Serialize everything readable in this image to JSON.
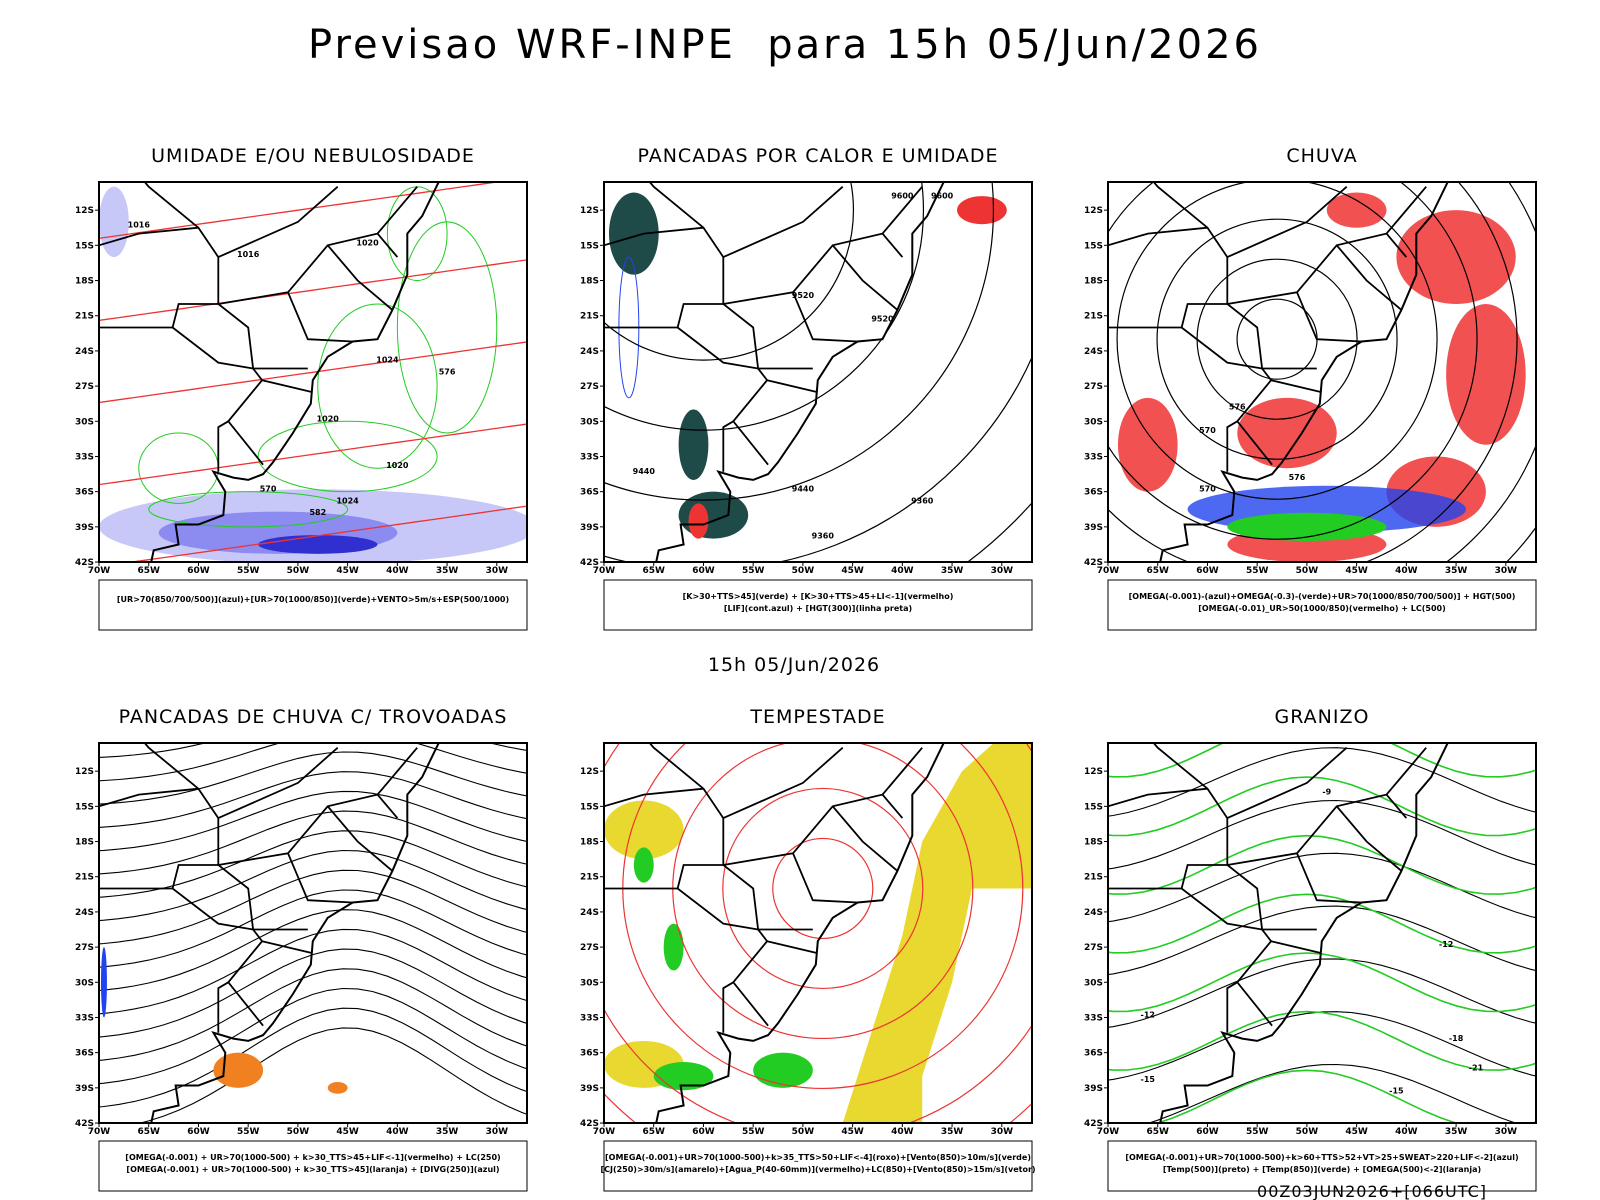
{
  "title": "Previsao WRF-INPE  para 15h 05/Jun/2026",
  "subtitle": "15h 05/Jun/2026",
  "footer": "00Z03JUN2026+[066UTC]",
  "lat_ticks": [
    "12S",
    "15S",
    "18S",
    "21S",
    "24S",
    "27S",
    "30S",
    "33S",
    "36S",
    "39S",
    "42S"
  ],
  "lon_ticks": [
    "70W",
    "65W",
    "60W",
    "55W",
    "50W",
    "45W",
    "40W",
    "35W",
    "30W"
  ],
  "panels": [
    {
      "title": "UMIDADE E/OU NEBULOSIDADE",
      "legend": [
        "[UR>70(850/700/500)](azul)+[UR>70(1000/850)](verde)+VENTO>5m/s+ESP(500/1000)"
      ],
      "contour_labels": [
        "1016",
        "1016",
        "1020",
        "1024",
        "1020",
        "1024",
        "1020",
        "576",
        "582",
        "570"
      ]
    },
    {
      "title": "PANCADAS POR CALOR E UMIDADE",
      "legend": [
        "[K>30+TTS>45](verde) + [K>30+TTS>45+LI<-1](vermelho)",
        "[LIF](cont.azul) + [HGT(300)](linha preta)"
      ],
      "contour_labels": [
        "9600",
        "9600",
        "9520",
        "9520",
        "9440",
        "9440",
        "9360",
        "9360"
      ]
    },
    {
      "title": "CHUVA",
      "legend": [
        "[OMEGA(-0.001)-(azul)+OMEGA(-0.3)-(verde)+UR>70(1000/850/700/500)] + HGT(500)",
        "[OMEGA(-0.01)_UR>50(1000/850)(vermelho) + LC(500)"
      ],
      "contour_labels": [
        "576",
        "570",
        "576",
        "570"
      ]
    },
    {
      "title": "PANCADAS DE CHUVA C/ TROVOADAS",
      "legend": [
        "[OMEGA(-0.001) + UR>70(1000-500) + k>30_TTS>45+LIF<-1](vermelho) + LC(250)",
        "[OMEGA(-0.001) + UR>70(1000-500) + k>30_TTS>45](laranja) + [DIVG(250)](azul)"
      ],
      "contour_labels": []
    },
    {
      "title": "TEMPESTADE",
      "legend": [
        "[OMEGA(-0.001)+UR>70(1000-500)+k>35_TTS>50+LIF<-4](roxo)+[Vento(850)>10m/s](verde)",
        "[CJ(250)>30m/s](amarelo)+[Agua_P(40-60mm)](vermelho)+LC(850)+[Vento(850)>15m/s](vetor)"
      ],
      "contour_labels": []
    },
    {
      "title": "GRANIZO",
      "legend": [
        "[OMEGA(-0.001)+UR>70(1000-500)+k>60+TTS>52+VT>25+SWEAT>220+LIF<-2](azul)",
        "[Temp(500)](preto) + [Temp(850)](verde) + [OMEGA(500)<-2](laranja)"
      ],
      "contour_labels": [
        "-9",
        "-12",
        "-12",
        "-15",
        "-15",
        "-18",
        "-21"
      ]
    }
  ]
}
